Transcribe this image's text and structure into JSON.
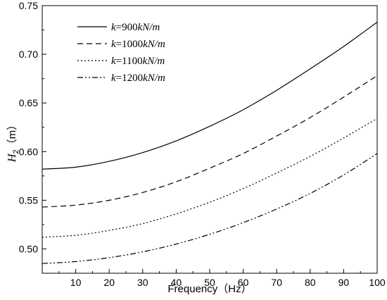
{
  "chart_data": {
    "type": "line",
    "title": "",
    "xlabel": "Frequency（Hz）",
    "ylabel": {
      "prefix": "H",
      "subscript": "2",
      "suffix": "（m）"
    },
    "xlim": [
      0,
      100
    ],
    "ylim": [
      0.475,
      0.75
    ],
    "xticks": [
      10,
      20,
      30,
      40,
      50,
      60,
      70,
      80,
      90,
      100
    ],
    "yticks": [
      0.5,
      0.55,
      0.6,
      0.65,
      0.7,
      0.75
    ],
    "grid": false,
    "legend_position": "top-left",
    "x": [
      0,
      10,
      20,
      30,
      40,
      50,
      60,
      70,
      80,
      90,
      100
    ],
    "series": [
      {
        "name": "k=900kN/m",
        "name_parts": {
          "var": "k",
          "eq": "=900",
          "unit": "kN/m"
        },
        "style": "solid",
        "values": [
          0.582,
          0.584,
          0.59,
          0.599,
          0.611,
          0.626,
          0.643,
          0.663,
          0.685,
          0.708,
          0.733
        ]
      },
      {
        "name": "k=1000kN/m",
        "name_parts": {
          "var": "k",
          "eq": "=1000",
          "unit": "kN/m"
        },
        "style": "dashed",
        "values": [
          0.543,
          0.545,
          0.55,
          0.558,
          0.569,
          0.583,
          0.598,
          0.616,
          0.635,
          0.656,
          0.678
        ]
      },
      {
        "name": "k=1100kN/m",
        "name_parts": {
          "var": "k",
          "eq": "=1100",
          "unit": "kN/m"
        },
        "style": "dotted",
        "values": [
          0.512,
          0.514,
          0.519,
          0.526,
          0.536,
          0.548,
          0.562,
          0.578,
          0.595,
          0.614,
          0.634
        ]
      },
      {
        "name": "k=1200kN/m",
        "name_parts": {
          "var": "k",
          "eq": "=1200",
          "unit": "kN/m"
        },
        "style": "dash-dot-dot",
        "values": [
          0.485,
          0.487,
          0.491,
          0.497,
          0.505,
          0.515,
          0.527,
          0.541,
          0.557,
          0.576,
          0.598
        ]
      }
    ]
  }
}
